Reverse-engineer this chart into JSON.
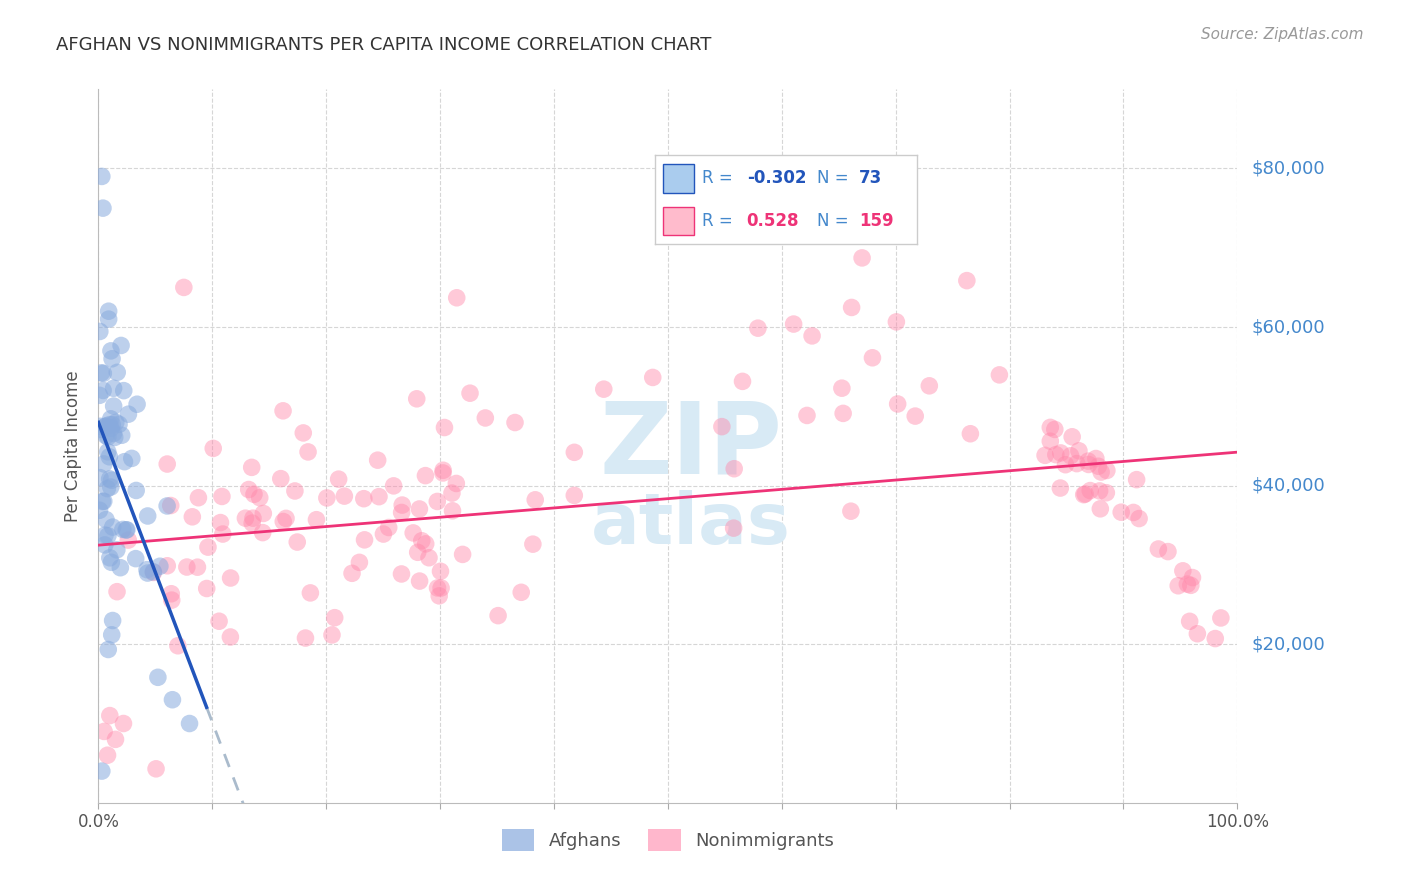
{
  "title": "AFGHAN VS NONIMMIGRANTS PER CAPITA INCOME CORRELATION CHART",
  "source": "Source: ZipAtlas.com",
  "ylabel": "Per Capita Income",
  "ytick_labels": [
    "$20,000",
    "$40,000",
    "$60,000",
    "$80,000"
  ],
  "ytick_values": [
    20000,
    40000,
    60000,
    80000
  ],
  "ymin": 0,
  "ymax": 90000,
  "xmin": 0.0,
  "xmax": 1.0,
  "blue_color": "#88AADD",
  "pink_color": "#FF88AA",
  "blue_line_color": "#2255BB",
  "pink_line_color": "#EE3377",
  "axis_label_color": "#4488CC",
  "background_color": "#FFFFFF",
  "grid_color": "#CCCCCC",
  "afghans_label": "Afghans",
  "nonimmigrants_label": "Nonimmigrants",
  "legend_box_color_blue": "#AACCEE",
  "legend_box_color_pink": "#FFBBCC"
}
